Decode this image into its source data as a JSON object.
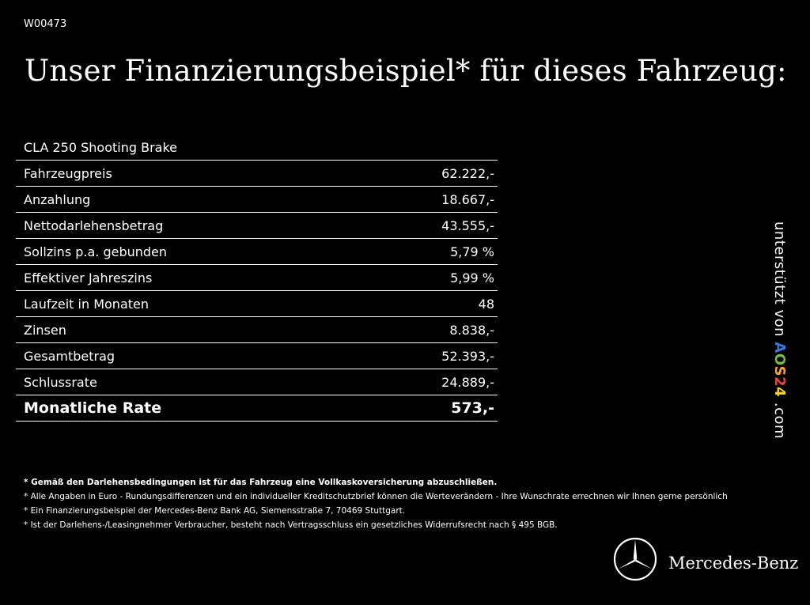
{
  "code": "W00473",
  "headline": "Unser Finanzierungsbeispiel* für dieses Fahrzeug:",
  "model": "CLA 250 Shooting Brake",
  "rows": [
    {
      "label": "Fahrzeugpreis",
      "value": "62.222,-"
    },
    {
      "label": "Anzahlung",
      "value": "18.667,-"
    },
    {
      "label": "Nettodarlehensbetrag",
      "value": "43.555,-"
    },
    {
      "label": "Sollzins p.a. gebunden",
      "value": "5,79 %"
    },
    {
      "label": "Effektiver Jahreszins",
      "value": "5,99 %"
    },
    {
      "label": "Laufzeit in Monaten",
      "value": "48"
    },
    {
      "label": "Zinsen",
      "value": "8.838,-"
    },
    {
      "label": "Gesamtbetrag",
      "value": "52.393,-"
    },
    {
      "label": "Schlussrate",
      "value": "24.889,-"
    }
  ],
  "total": {
    "label": "Monatliche Rate",
    "value": "573,-"
  },
  "footnotes": [
    "* Gemäß den Darlehensbedingungen ist für das Fahrzeug eine Vollkaskoversicherung abzuschließen.",
    "* Alle Angaben in Euro - Rundungsdifferenzen und ein individueller Kreditschutzbrief können die Werteverändern - Ihre Wunschrate errechnen wir Ihnen gerne persönlich",
    "* Ein Finanzierungsbeispiel der Mercedes-Benz Bank AG, Siemensstraße 7, 70469 Stuttgart.",
    "* Ist der Darlehens-/Leasingnehmer Verbraucher, besteht nach Vertragsschluss ein gesetzliches Widerrufsrecht nach § 495 BGB."
  ],
  "support": {
    "prefix": "unterstützt von",
    "logo_letters": [
      {
        "char": "A",
        "color": "#3a7bd5"
      },
      {
        "char": "O",
        "color": "#7ab648"
      },
      {
        "char": "S",
        "color": "#f2a23a"
      },
      {
        "char": "2",
        "color": "#e04848"
      },
      {
        "char": "4",
        "color": "#f2d23a"
      }
    ],
    "suffix": ".com"
  },
  "brand": "Mercedes-Benz",
  "logo_icon": "mercedes-star-icon"
}
